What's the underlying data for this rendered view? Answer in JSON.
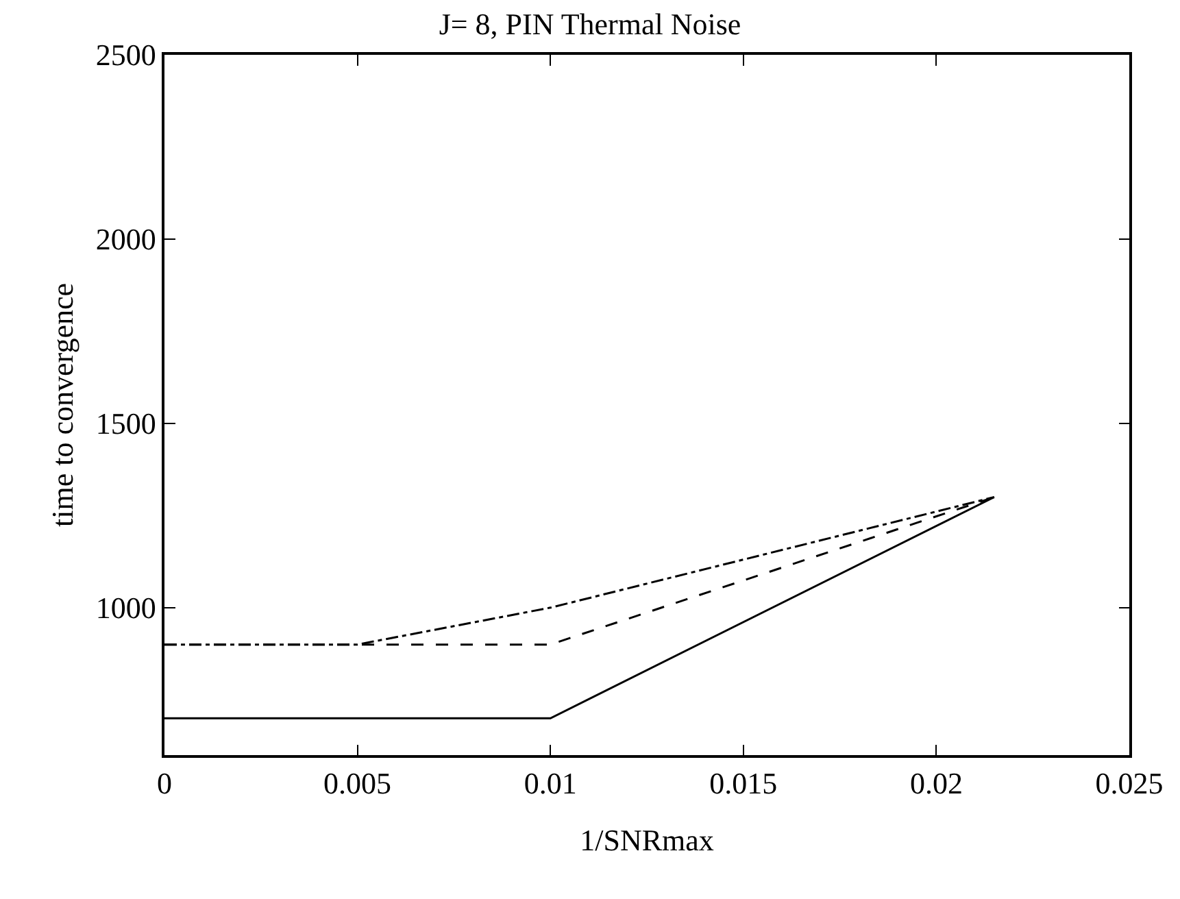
{
  "chart_data": {
    "type": "line",
    "title": "J= 8, PIN Thermal Noise",
    "xlabel": "1/SNRmax",
    "ylabel": "time to convergence",
    "xlim": [
      0,
      0.025
    ],
    "xticks": [
      0,
      0.005,
      0.01,
      0.015,
      0.02,
      0.025
    ],
    "ylim": [
      600,
      2500
    ],
    "yticks": [
      1000,
      1500,
      2000,
      2500
    ],
    "marker": "none",
    "series": [
      {
        "color": "#000000",
        "line_style": "solid",
        "x": [
          0,
          0.01,
          0.0215
        ],
        "values": [
          700,
          700,
          1300
        ]
      },
      {
        "color": "#000000",
        "line_style": "dashed",
        "x": [
          0,
          0.01,
          0.0215
        ],
        "values": [
          900,
          900,
          1300
        ]
      },
      {
        "color": "#000000",
        "line_style": "dashdot",
        "x": [
          0,
          0.005,
          0.01,
          0.0215
        ],
        "values": [
          900,
          900,
          1000,
          1300
        ]
      }
    ]
  }
}
